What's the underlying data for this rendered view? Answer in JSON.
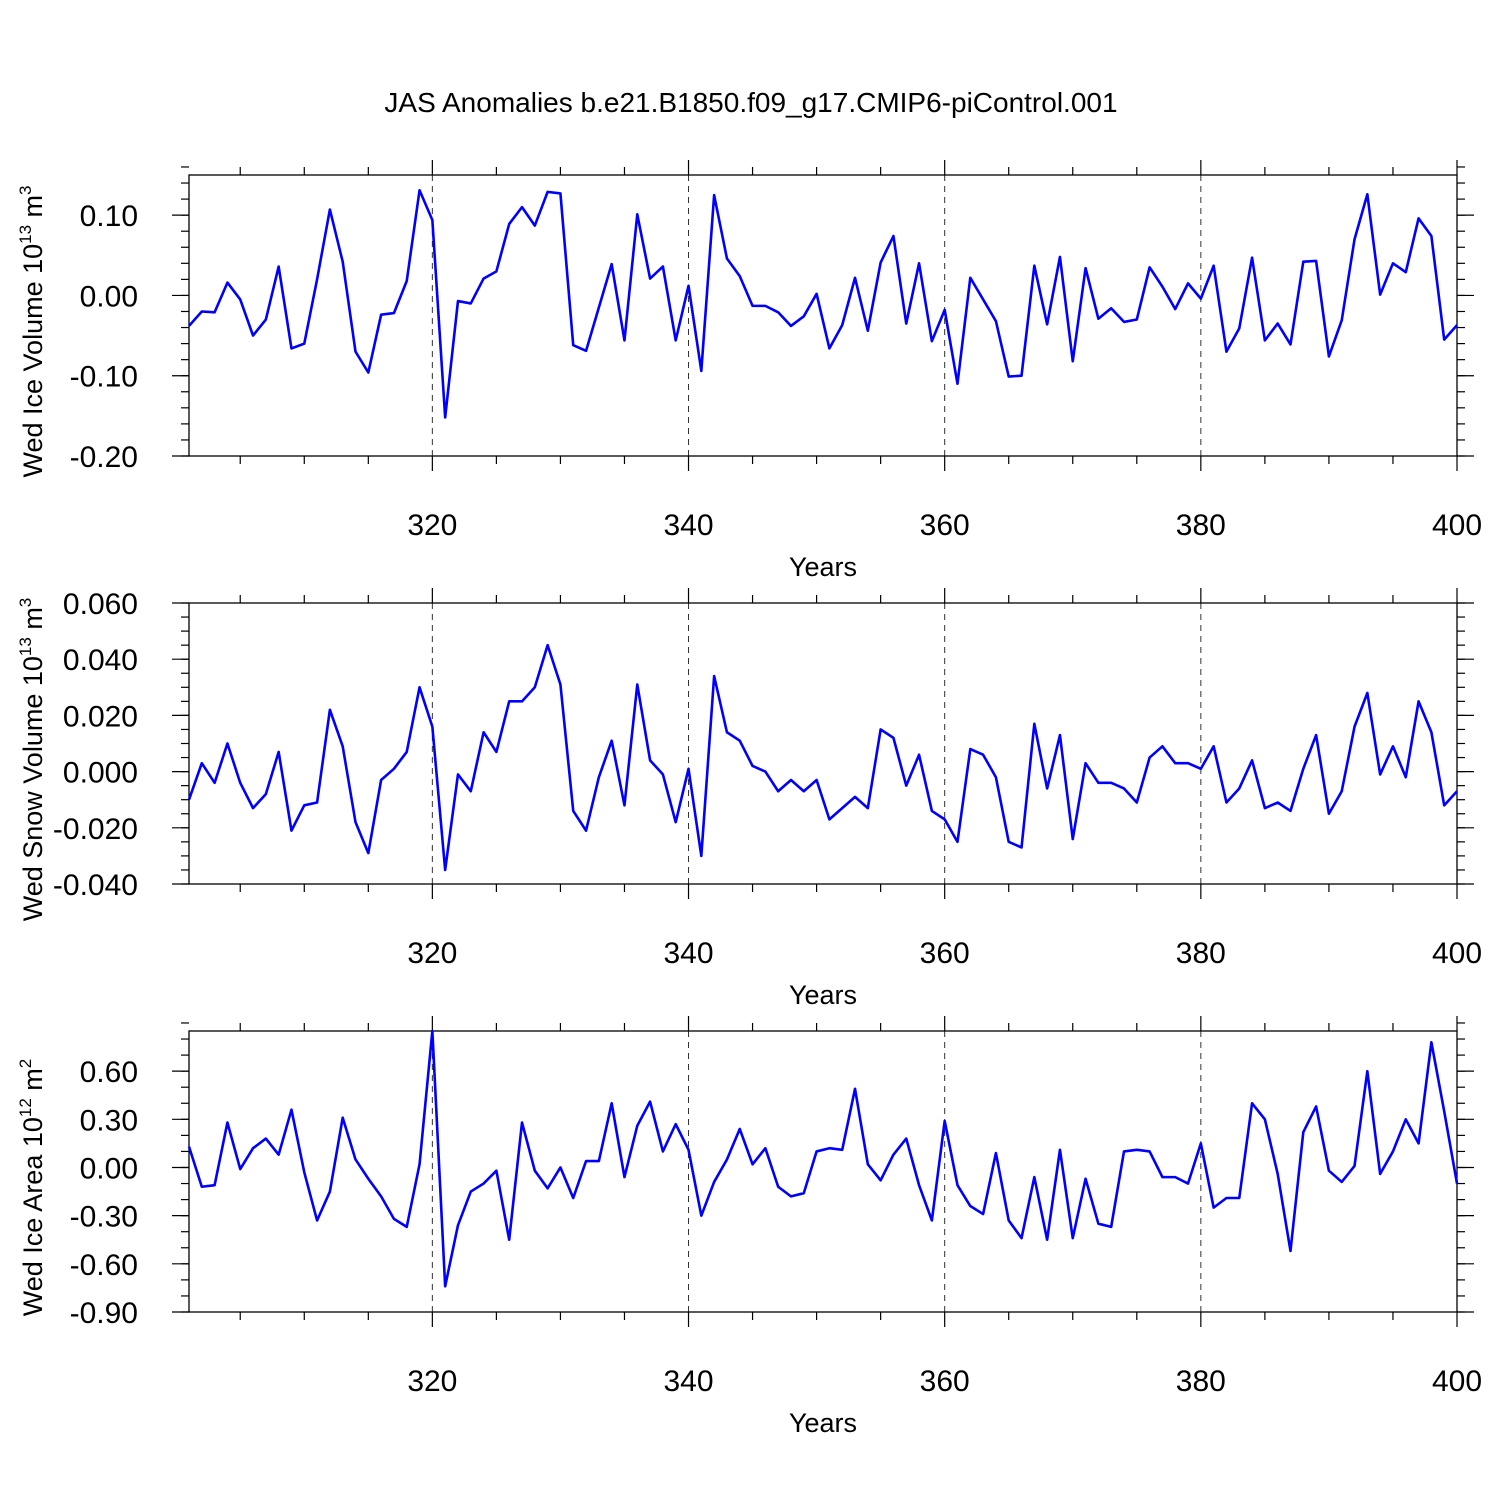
{
  "chart_data": {
    "title": "JAS Anomalies b.e21.B1850.f09_g17.CMIP6-piControl.001",
    "type": "line",
    "x_start": 301,
    "x_end": 400,
    "xlim": [
      301,
      400
    ],
    "x_ticks": [
      320,
      340,
      360,
      380,
      400
    ],
    "panels": [
      {
        "id": "ice-volume",
        "ylabel": {
          "base": "Wed Ice Volume 10",
          "exp1": "13",
          "mid": " m",
          "exp2": "3"
        },
        "xlabel": "Years",
        "ylim": [
          -0.2,
          0.15
        ],
        "y_ticks": [
          -0.2,
          -0.1,
          0.0,
          0.1
        ],
        "y_tick_labels": [
          "-0.20",
          "-0.10",
          "0.00",
          "0.10"
        ],
        "y_minor_step": 0.02,
        "values": [
          -0.038,
          -0.02,
          -0.021,
          0.016,
          -0.005,
          -0.05,
          -0.03,
          0.036,
          -0.066,
          -0.06,
          0.02,
          0.107,
          0.042,
          -0.07,
          -0.096,
          -0.024,
          -0.022,
          0.018,
          0.131,
          0.094,
          -0.152,
          -0.007,
          -0.01,
          0.021,
          0.03,
          0.089,
          0.11,
          0.087,
          0.129,
          0.127,
          -0.062,
          -0.069,
          -0.015,
          0.039,
          -0.056,
          0.101,
          0.021,
          0.036,
          -0.056,
          0.012,
          -0.094,
          0.125,
          0.046,
          0.024,
          -0.013,
          -0.013,
          -0.021,
          -0.038,
          -0.026,
          0.002,
          -0.066,
          -0.037,
          0.022,
          -0.044,
          0.041,
          0.074,
          -0.035,
          0.04,
          -0.057,
          -0.018,
          -0.11,
          0.022,
          -0.005,
          -0.032,
          -0.101,
          -0.1,
          0.037,
          -0.036,
          0.048,
          -0.082,
          0.034,
          -0.029,
          -0.016,
          -0.033,
          -0.03,
          0.035,
          0.011,
          -0.017,
          0.015,
          -0.004,
          0.037,
          -0.07,
          -0.041,
          0.047,
          -0.056,
          -0.035,
          -0.061,
          0.042,
          0.043,
          -0.076,
          -0.031,
          0.07,
          0.126,
          0.001,
          0.04,
          0.029,
          0.096,
          0.074,
          -0.055,
          -0.037
        ]
      },
      {
        "id": "snow-volume",
        "ylabel": {
          "base": "Wed Snow Volume 10",
          "exp1": "13",
          "mid": " m",
          "exp2": "3"
        },
        "xlabel": "Years",
        "ylim": [
          -0.04,
          0.06
        ],
        "y_ticks": [
          -0.04,
          -0.02,
          0.0,
          0.02,
          0.04,
          0.06
        ],
        "y_tick_labels": [
          "-0.040",
          "-0.020",
          "0.000",
          "0.020",
          "0.040",
          "0.060"
        ],
        "y_minor_step": 0.005,
        "values": [
          -0.01,
          0.003,
          -0.004,
          0.01,
          -0.004,
          -0.013,
          -0.008,
          0.007,
          -0.021,
          -0.012,
          -0.011,
          0.022,
          0.009,
          -0.018,
          -0.029,
          -0.003,
          0.001,
          0.007,
          0.03,
          0.016,
          -0.035,
          -0.001,
          -0.007,
          0.014,
          0.007,
          0.025,
          0.025,
          0.03,
          0.045,
          0.031,
          -0.014,
          -0.021,
          -0.002,
          0.011,
          -0.012,
          0.031,
          0.004,
          -0.001,
          -0.018,
          0.001,
          -0.03,
          0.034,
          0.014,
          0.011,
          0.002,
          0.0,
          -0.007,
          -0.003,
          -0.007,
          -0.003,
          -0.017,
          -0.013,
          -0.009,
          -0.013,
          0.015,
          0.012,
          -0.005,
          0.006,
          -0.014,
          -0.017,
          -0.025,
          0.008,
          0.006,
          -0.002,
          -0.025,
          -0.027,
          0.017,
          -0.006,
          0.013,
          -0.024,
          0.003,
          -0.004,
          -0.004,
          -0.006,
          -0.011,
          0.005,
          0.009,
          0.003,
          0.003,
          0.001,
          0.009,
          -0.011,
          -0.006,
          0.004,
          -0.013,
          -0.011,
          -0.014,
          0.001,
          0.013,
          -0.015,
          -0.007,
          0.016,
          0.028,
          -0.001,
          0.009,
          -0.002,
          0.025,
          0.014,
          -0.012,
          -0.007
        ]
      },
      {
        "id": "ice-area",
        "ylabel": {
          "base": "Wed Ice Area 10",
          "exp1": "12",
          "mid": " m",
          "exp2": "2"
        },
        "xlabel": "Years",
        "ylim": [
          -0.9,
          0.85
        ],
        "y_ticks": [
          -0.9,
          -0.6,
          -0.3,
          0.0,
          0.3,
          0.6
        ],
        "y_tick_labels": [
          "-0.90",
          "-0.60",
          "-0.30",
          "0.00",
          "0.30",
          "0.60"
        ],
        "y_minor_step": 0.1,
        "values": [
          0.13,
          -0.12,
          -0.11,
          0.28,
          -0.01,
          0.12,
          0.18,
          0.08,
          0.36,
          -0.03,
          -0.33,
          -0.15,
          0.31,
          0.05,
          -0.07,
          -0.18,
          -0.32,
          -0.37,
          0.02,
          0.85,
          -0.74,
          -0.36,
          -0.15,
          -0.1,
          -0.02,
          -0.45,
          0.28,
          -0.02,
          -0.13,
          0.0,
          -0.19,
          0.04,
          0.04,
          0.4,
          -0.06,
          0.26,
          0.41,
          0.1,
          0.27,
          0.11,
          -0.3,
          -0.09,
          0.05,
          0.24,
          0.02,
          0.12,
          -0.12,
          -0.18,
          -0.16,
          0.1,
          0.12,
          0.11,
          0.49,
          0.02,
          -0.08,
          0.08,
          0.18,
          -0.11,
          -0.33,
          0.29,
          -0.11,
          -0.24,
          -0.29,
          0.09,
          -0.33,
          -0.44,
          -0.06,
          -0.45,
          0.11,
          -0.44,
          -0.07,
          -0.35,
          -0.37,
          0.1,
          0.11,
          0.1,
          -0.06,
          -0.06,
          -0.1,
          0.15,
          -0.25,
          -0.19,
          -0.19,
          0.4,
          0.3,
          -0.04,
          -0.52,
          0.22,
          0.38,
          -0.02,
          -0.09,
          0.01,
          0.6,
          -0.04,
          0.1,
          0.3,
          0.15,
          0.78,
          0.35,
          -0.1
        ]
      }
    ]
  }
}
